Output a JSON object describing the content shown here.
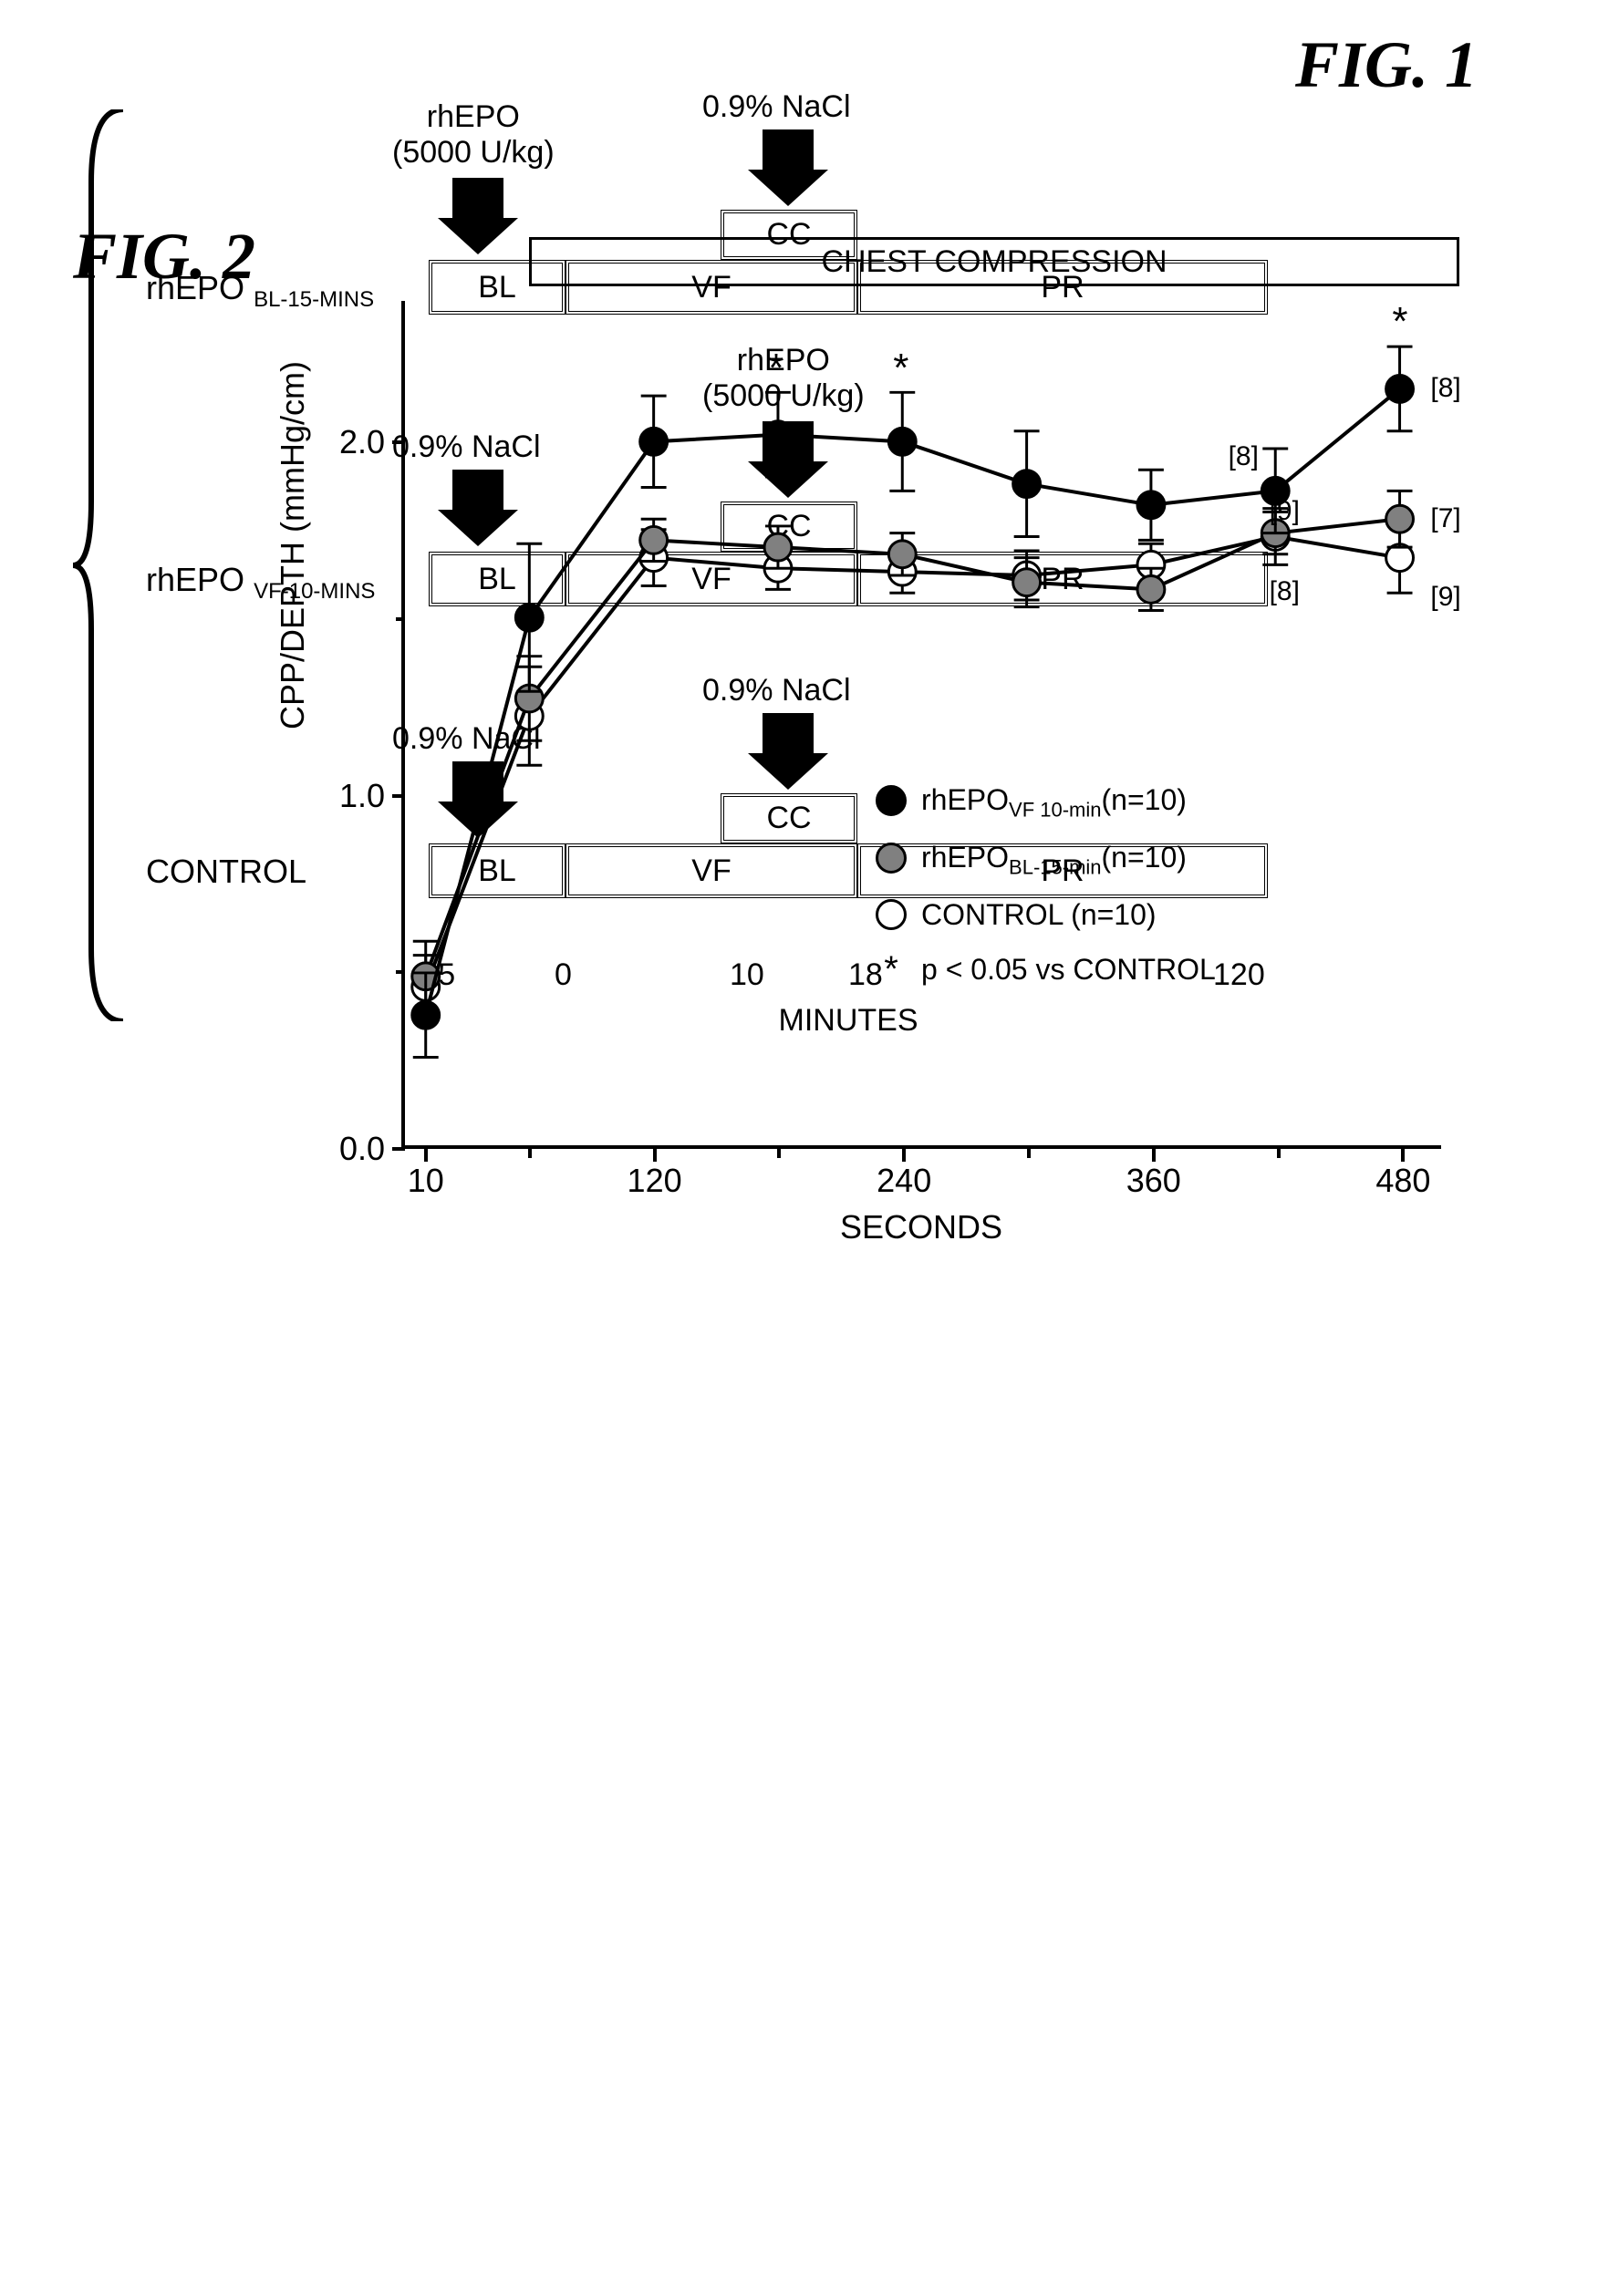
{
  "fig1": {
    "title": "FIG. 1",
    "rows": [
      {
        "label_main": "rhEPO",
        "label_sub": "BL-15-MINS",
        "arrow_left": {
          "line1": "rhEPO",
          "line2": "(5000 U/kg)"
        },
        "arrow_right": {
          "line1": "0.9% NaCl",
          "line2": ""
        }
      },
      {
        "label_main": "rhEPO",
        "label_sub": "VF-10-MINS",
        "arrow_left": {
          "line1": "0.9% NaCl",
          "line2": ""
        },
        "arrow_right": {
          "line1": "rhEPO",
          "line2": "(5000 U/kg)"
        }
      },
      {
        "label_main": "CONTROL",
        "label_sub": "",
        "arrow_left": {
          "line1": "0.9% NaCl",
          "line2": ""
        },
        "arrow_right": {
          "line1": "0.9% NaCl",
          "line2": ""
        }
      }
    ],
    "segments": {
      "bl": "BL",
      "vf": "VF",
      "pr": "PR",
      "cc": "CC"
    },
    "xaxis_ticks": [
      "-15",
      "0",
      "10",
      "18",
      "120"
    ],
    "xaxis_label": "MINUTES"
  },
  "fig2": {
    "title": "FIG. 2",
    "banner": "CHEST COMPRESSION",
    "ylabel": "CPP/DEPTH (mmHg/cm)",
    "xlabel": "SECONDS",
    "ylim": [
      0.0,
      2.4
    ],
    "yticks": [
      0.0,
      1.0,
      2.0
    ],
    "ytick_labels": [
      "0.0",
      "1.0",
      "2.0"
    ],
    "ytick_minor": [
      0.5,
      1.5
    ],
    "xlim": [
      0,
      500
    ],
    "xticks": [
      10,
      120,
      240,
      360,
      480
    ],
    "xtick_labels": [
      "10",
      "120",
      "240",
      "360",
      "480"
    ],
    "xtick_minor": [
      60,
      180,
      300,
      420
    ],
    "colors": {
      "filled": "#000000",
      "gray": "#808080",
      "open": "#ffffff",
      "stroke": "#000000"
    },
    "marker_radius": 15,
    "line_width": 4,
    "err_cap": 14,
    "series": [
      {
        "name": "rhEPO_VF",
        "legend_main": "rhEPO",
        "legend_sub": "VF 10-min",
        "legend_n": "(n=10)",
        "fill": "#000000",
        "x": [
          10,
          60,
          120,
          180,
          240,
          300,
          360,
          420,
          480
        ],
        "y": [
          0.37,
          1.5,
          2.0,
          2.02,
          2.0,
          1.88,
          1.82,
          1.86,
          2.15
        ],
        "err": [
          0.12,
          0.21,
          0.13,
          0.12,
          0.14,
          0.15,
          0.1,
          0.12,
          0.12
        ],
        "stars_x": [
          180,
          240,
          480
        ],
        "ann": [
          {
            "x": 420,
            "y": 1.86,
            "text": "[8]",
            "dy": -55,
            "dx": -55
          },
          {
            "x": 480,
            "y": 2.15,
            "text": "[8]",
            "dy": -18,
            "dx": 30
          }
        ]
      },
      {
        "name": "rhEPO_BL",
        "legend_main": "rhEPO",
        "legend_sub": "BL-15-min",
        "legend_n": "(n=10)",
        "fill": "#808080",
        "x": [
          10,
          60,
          120,
          180,
          240,
          300,
          360,
          420,
          480
        ],
        "y": [
          0.48,
          1.27,
          1.72,
          1.7,
          1.68,
          1.6,
          1.58,
          1.74,
          1.78
        ],
        "err": [
          0.1,
          0.12,
          0.06,
          0.06,
          0.06,
          0.07,
          0.06,
          0.06,
          0.08
        ],
        "stars_x": [],
        "ann": [
          {
            "x": 420,
            "y": 1.74,
            "text": "[9]",
            "dy": -42,
            "dx": -10
          },
          {
            "x": 480,
            "y": 1.78,
            "text": "[7]",
            "dy": -18,
            "dx": 30
          }
        ]
      },
      {
        "name": "CONTROL",
        "legend_main": "CONTROL ",
        "legend_sub": "",
        "legend_n": "(n=10)",
        "fill": "#ffffff",
        "x": [
          10,
          60,
          120,
          180,
          240,
          300,
          360,
          420,
          480
        ],
        "y": [
          0.45,
          1.22,
          1.67,
          1.64,
          1.63,
          1.62,
          1.65,
          1.73,
          1.67
        ],
        "err": [
          0.09,
          0.14,
          0.08,
          0.06,
          0.06,
          0.07,
          0.06,
          0.08,
          0.1
        ],
        "stars_x": [],
        "ann": [
          {
            "x": 420,
            "y": 1.73,
            "text": "[8]",
            "dy": 42,
            "dx": -10
          },
          {
            "x": 480,
            "y": 1.67,
            "text": "[9]",
            "dy": 25,
            "dx": 30
          }
        ]
      }
    ],
    "legend_star": "p < 0.05 vs CONTROL"
  }
}
